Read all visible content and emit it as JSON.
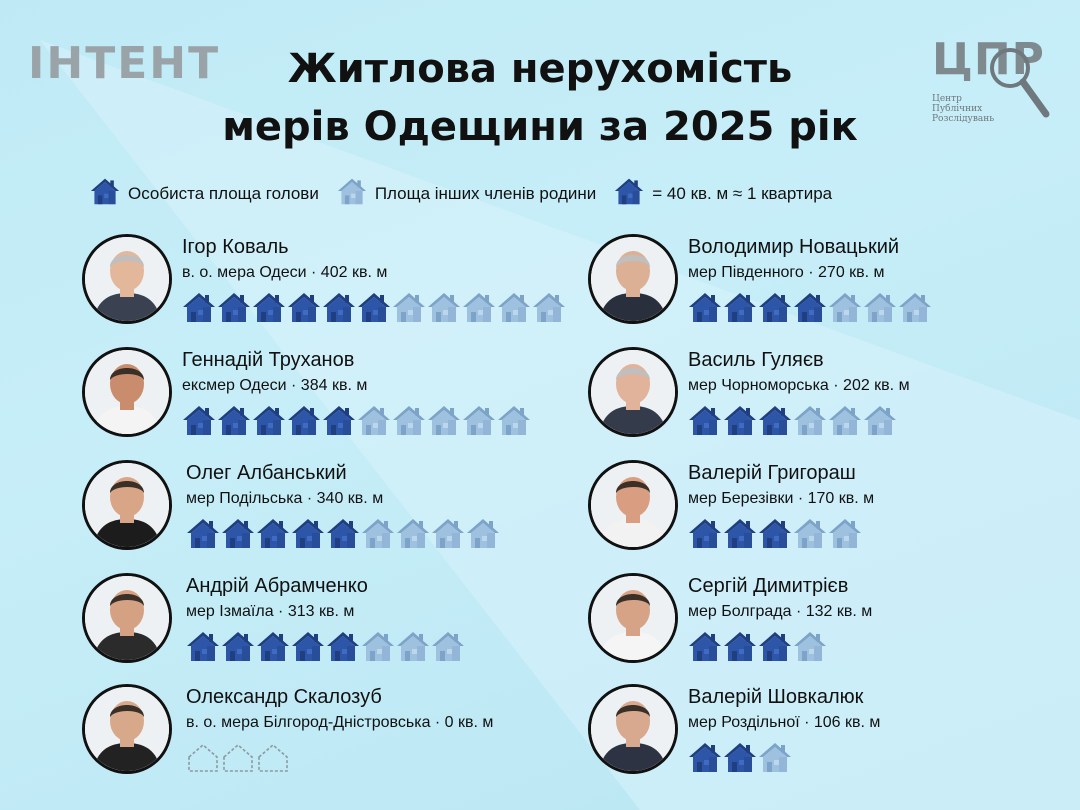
{
  "logo_left": "ІНТЕНТ",
  "title_line1": "Житлова нерухомість",
  "title_line2": "мерів Одещини за 2025 рік",
  "logo_right": {
    "letters": "ЦПР",
    "sub_line1": "Центр",
    "sub_line2": "Публічних",
    "sub_line3": "Розслідувань"
  },
  "legend": {
    "personal": "Особиста площа голови",
    "family": "Площа інших членів родини",
    "unit": "= 40 кв. м ≈ 1 квартира"
  },
  "colors": {
    "personal": "#2d56a8",
    "family": "#9fc1e0",
    "empty": "#8e9aa0"
  },
  "mayors": [
    {
      "name": "Ігор Коваль",
      "role": "в. о. мера Одеси · 402 кв. м",
      "personal": 6,
      "family": 5
    },
    {
      "name": "Геннадій Труханов",
      "role": "ексмер Одеси · 384 кв. м",
      "personal": 5,
      "family": 5
    },
    {
      "name": "Олег Албанський",
      "role": "мер Подільська · 340 кв. м",
      "personal": 5,
      "family": 4
    },
    {
      "name": "Андрій Абрамченко",
      "role": "мер Ізмаїла · 313 кв. м",
      "personal": 5,
      "family": 3
    },
    {
      "name": "Олександр Скалозуб",
      "role": "в. о. мера Білгород-Дністровська · 0 кв. м",
      "personal": 0,
      "family": 0,
      "empty": 3
    },
    {
      "name": "Володимир Новацький",
      "role": "мер Південного · 270 кв. м",
      "personal": 4,
      "family": 3
    },
    {
      "name": "Василь Гуляєв",
      "role": "мер Чорноморська · 202 кв. м",
      "personal": 3,
      "family": 3
    },
    {
      "name": "Валерій Григораш",
      "role": "мер Березівки · 170 кв. м",
      "personal": 3,
      "family": 2
    },
    {
      "name": "Сергій Димитрієв",
      "role": "мер Болграда · 132 кв. м",
      "personal": 3,
      "family": 1
    },
    {
      "name": "Валерій Шовкалюк",
      "role": "мер Роздільної · 106 кв. м",
      "personal": 2,
      "family": 1
    }
  ]
}
